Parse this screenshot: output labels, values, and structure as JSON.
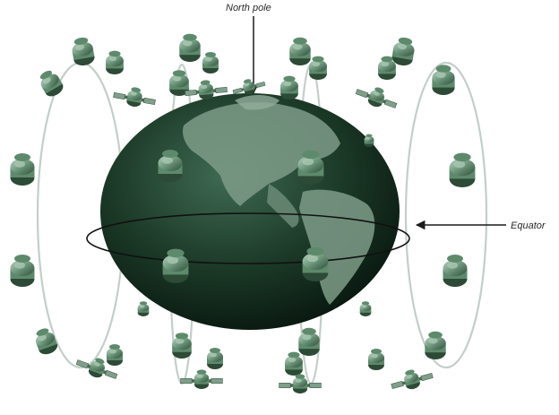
{
  "labels": {
    "north_pole": "North pole",
    "equator": "Equator"
  },
  "colors": {
    "earth_dark": "#0f2418",
    "earth_mid": "#2c4f3a",
    "land": "#7e9c88",
    "satellite": "#5e8a6c",
    "satellite_light": "#a9c7b1",
    "satellite_dark": "#2c4a36",
    "orbit": "#c9d2cc",
    "arrow": "#1a1a1a"
  },
  "icons": [
    "satellite-icon",
    "solar-panel-satellite-icon",
    "earth-globe"
  ]
}
